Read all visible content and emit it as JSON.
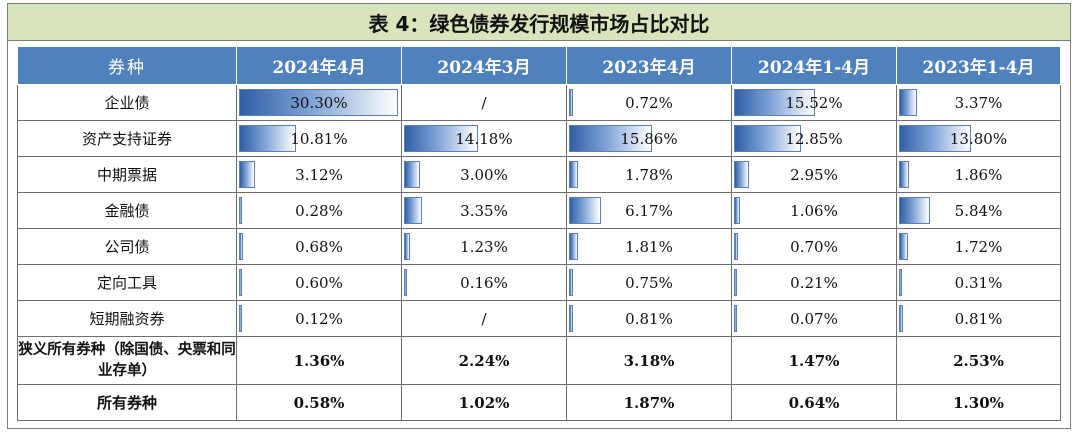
{
  "title": "表 4：绿色债券发行规模市场占比对比",
  "columns": [
    "券种",
    "2024年4月",
    "2024年3月",
    "2023年4月",
    "2024年1-4月",
    "2023年1-4月"
  ],
  "rows": [
    {
      "name": "企业债",
      "values": [
        "30.30%",
        "/",
        "0.72%",
        "15.52%",
        "3.37%"
      ],
      "levels": [
        30.3,
        null,
        0.72,
        15.52,
        3.37
      ],
      "bold": false
    },
    {
      "name": "资产支持证券",
      "values": [
        "10.81%",
        "14.18%",
        "15.86%",
        "12.85%",
        "13.80%"
      ],
      "levels": [
        10.81,
        14.18,
        15.86,
        12.85,
        13.8
      ],
      "bold": false
    },
    {
      "name": "中期票据",
      "values": [
        "3.12%",
        "3.00%",
        "1.78%",
        "2.95%",
        "1.86%"
      ],
      "levels": [
        3.12,
        3.0,
        1.78,
        2.95,
        1.86
      ],
      "bold": false
    },
    {
      "name": "金融债",
      "values": [
        "0.28%",
        "3.35%",
        "6.17%",
        "1.06%",
        "5.84%"
      ],
      "levels": [
        0.28,
        3.35,
        6.17,
        1.06,
        5.84
      ],
      "bold": false
    },
    {
      "name": "公司债",
      "values": [
        "0.68%",
        "1.23%",
        "1.81%",
        "0.70%",
        "1.72%"
      ],
      "levels": [
        0.68,
        1.23,
        1.81,
        0.7,
        1.72
      ],
      "bold": false
    },
    {
      "name": "定向工具",
      "values": [
        "0.60%",
        "0.16%",
        "0.75%",
        "0.21%",
        "0.31%"
      ],
      "levels": [
        0.6,
        0.16,
        0.75,
        0.21,
        0.31
      ],
      "bold": false
    },
    {
      "name": "短期融资券",
      "values": [
        "0.12%",
        "/",
        "0.81%",
        "0.07%",
        "0.81%"
      ],
      "levels": [
        0.12,
        null,
        0.81,
        0.07,
        0.81
      ],
      "bold": false
    },
    {
      "name": "狭义所有券种（除国债、央票和同业存单）",
      "values": [
        "1.36%",
        "2.24%",
        "3.18%",
        "1.47%",
        "2.53%"
      ],
      "levels": [
        null,
        null,
        null,
        null,
        null
      ],
      "bold": true
    },
    {
      "name": "所有券种",
      "values": [
        "0.58%",
        "1.02%",
        "1.87%",
        "0.64%",
        "1.30%"
      ],
      "levels": [
        null,
        null,
        null,
        null,
        null
      ],
      "bold": true
    }
  ],
  "bar_scale_max": 30.3,
  "colors": {
    "title_bg": "#d7e4bc",
    "header_bg": "#4f81bd",
    "bar": "#2f5fa6"
  }
}
